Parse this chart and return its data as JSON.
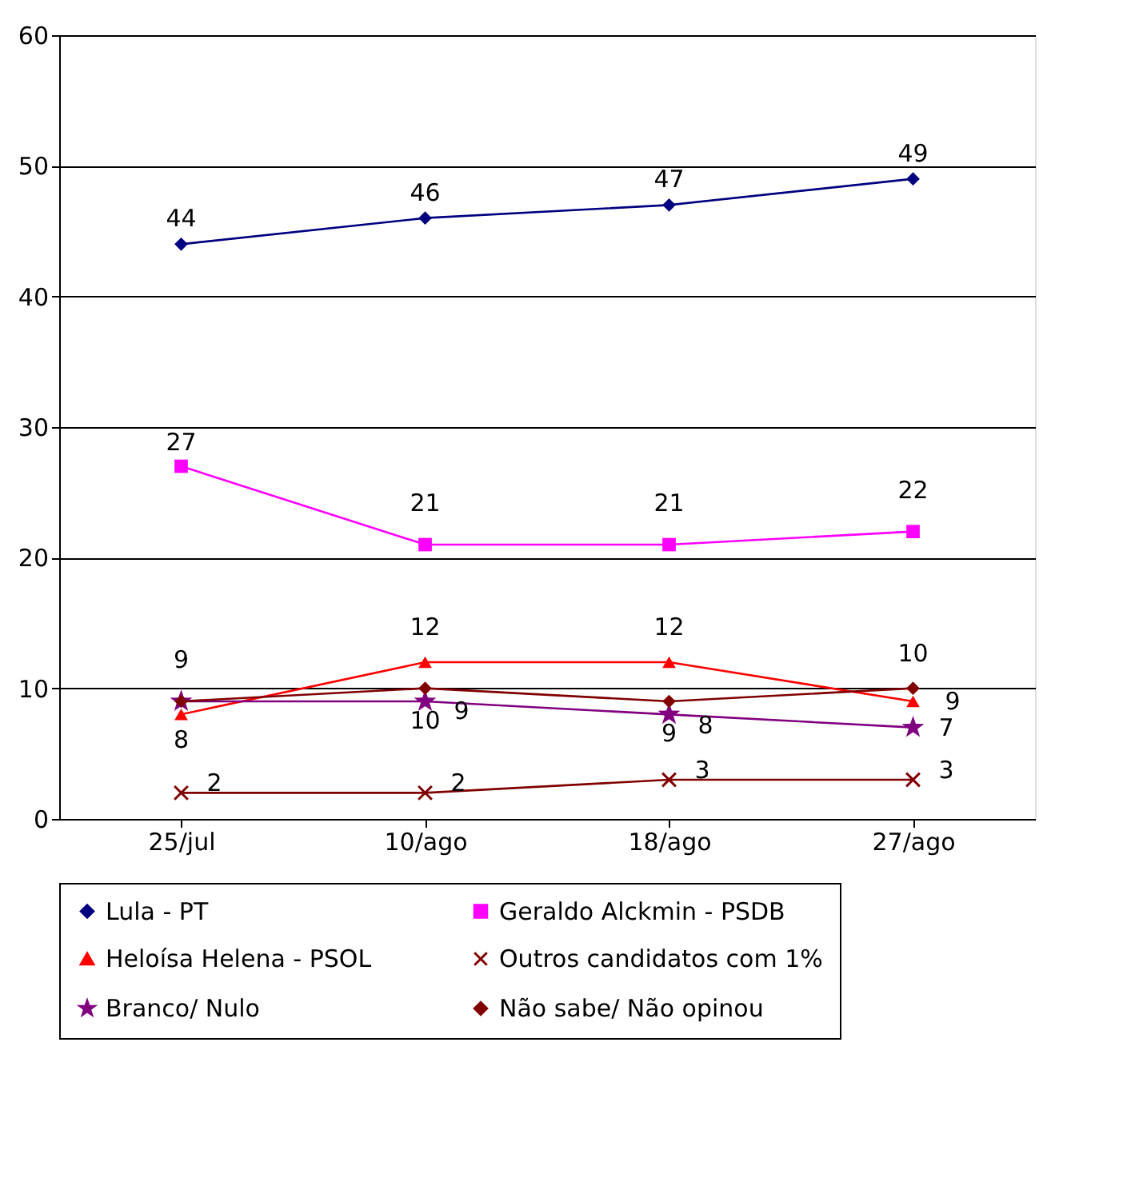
{
  "chart_data": {
    "type": "line",
    "categories": [
      "25/jul",
      "10/ago",
      "18/ago",
      "27/ago"
    ],
    "series": [
      {
        "name": "Lula - PT",
        "color": "#000080",
        "marker": "diamond",
        "values": [
          44,
          46,
          47,
          49
        ]
      },
      {
        "name": "Geraldo Alckmin - PSDB",
        "color": "#ff00ff",
        "marker": "square",
        "values": [
          27,
          21,
          21,
          22
        ]
      },
      {
        "name": "Heloísa Helena - PSOL",
        "color": "#ff0000",
        "marker": "triangle",
        "values": [
          8,
          12,
          12,
          9
        ]
      },
      {
        "name": "Outros candidatos com 1%",
        "color": "#800000",
        "marker": "cross",
        "values": [
          2,
          2,
          3,
          3
        ]
      },
      {
        "name": "Branco/ Nulo",
        "color": "#800080",
        "marker": "star",
        "values": [
          9,
          9,
          8,
          7
        ],
        "value_labels": [
          null,
          "9",
          "8",
          "7"
        ]
      },
      {
        "name": "Não sabe/ Não opinou",
        "color": "#800000",
        "marker": "diamond",
        "values": [
          9,
          10,
          9,
          10
        ]
      }
    ],
    "ylim": [
      0,
      60
    ],
    "yticks": [
      0,
      10,
      20,
      30,
      40,
      50,
      60
    ],
    "grid": "y",
    "legend": "bottom",
    "data_labels": true,
    "line_style": "solid"
  }
}
